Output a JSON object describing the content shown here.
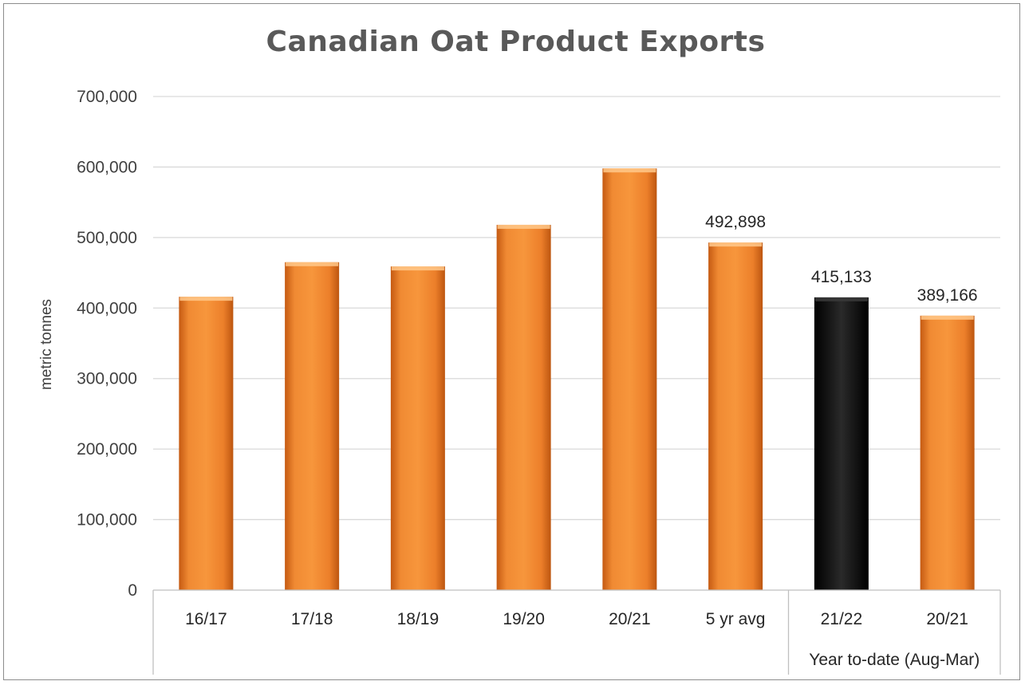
{
  "chart_data": {
    "type": "bar",
    "title": "Canadian Oat Product Exports",
    "ylabel": "metric tonnes",
    "ylim": [
      0,
      700000
    ],
    "yticks": [
      "0",
      "100,000",
      "200,000",
      "300,000",
      "400,000",
      "500,000",
      "600,000",
      "700,000"
    ],
    "categories": [
      "16/17",
      "17/18",
      "18/19",
      "19/20",
      "20/21",
      "5 yr avg",
      "21/22",
      "20/21"
    ],
    "values": [
      416000,
      465000,
      459000,
      518000,
      598000,
      492898,
      415133,
      389166
    ],
    "data_labels": [
      "",
      "",
      "",
      "",
      "",
      "492,898",
      "415,133",
      "389,166"
    ],
    "highlight_index": 6,
    "colors": {
      "bar": "#ed7d31",
      "highlight": "#1a1a1a",
      "grid": "#d9d9d9"
    },
    "group_label": "Year to-date (Aug-Mar)",
    "grid": true
  }
}
